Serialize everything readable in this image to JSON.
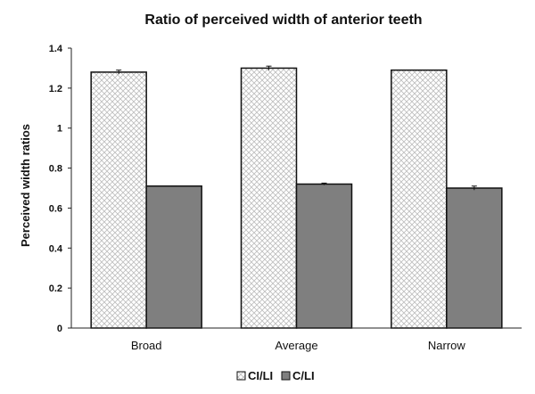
{
  "chart_data": {
    "type": "bar",
    "title": "Ratio of perceived width of anterior teeth",
    "xlabel": "",
    "ylabel": "Perceived width ratios",
    "categories": [
      "Broad",
      "Average",
      "Narrow"
    ],
    "series": [
      {
        "name": "CI/LI",
        "values": [
          1.28,
          1.3,
          1.29
        ],
        "errors": [
          0.01,
          0.01,
          0.0
        ],
        "fill": "#ffffff",
        "pattern": "crosshatch",
        "pattern_color": "#bdbdbd"
      },
      {
        "name": "C/LI",
        "values": [
          0.71,
          0.72,
          0.7
        ],
        "errors": [
          0.0,
          0.005,
          0.01
        ],
        "fill": "#7f7f7f",
        "pattern": "solid"
      }
    ],
    "ylim": [
      0,
      1.4
    ],
    "yticks": [
      0,
      0.2,
      0.4,
      0.6,
      0.8,
      1,
      1.2,
      1.4
    ],
    "ytick_labels": [
      "0",
      "0.2",
      "0.4",
      "0.6",
      "0.8",
      "1",
      "1.2",
      "1.4"
    ],
    "grid": false,
    "legend_position": "bottom",
    "legend": [
      "CI/LI",
      "C/LI"
    ],
    "colors": {
      "axis": "#222222",
      "bar_edge": "#111111",
      "series_solid": "#7f7f7f"
    }
  }
}
